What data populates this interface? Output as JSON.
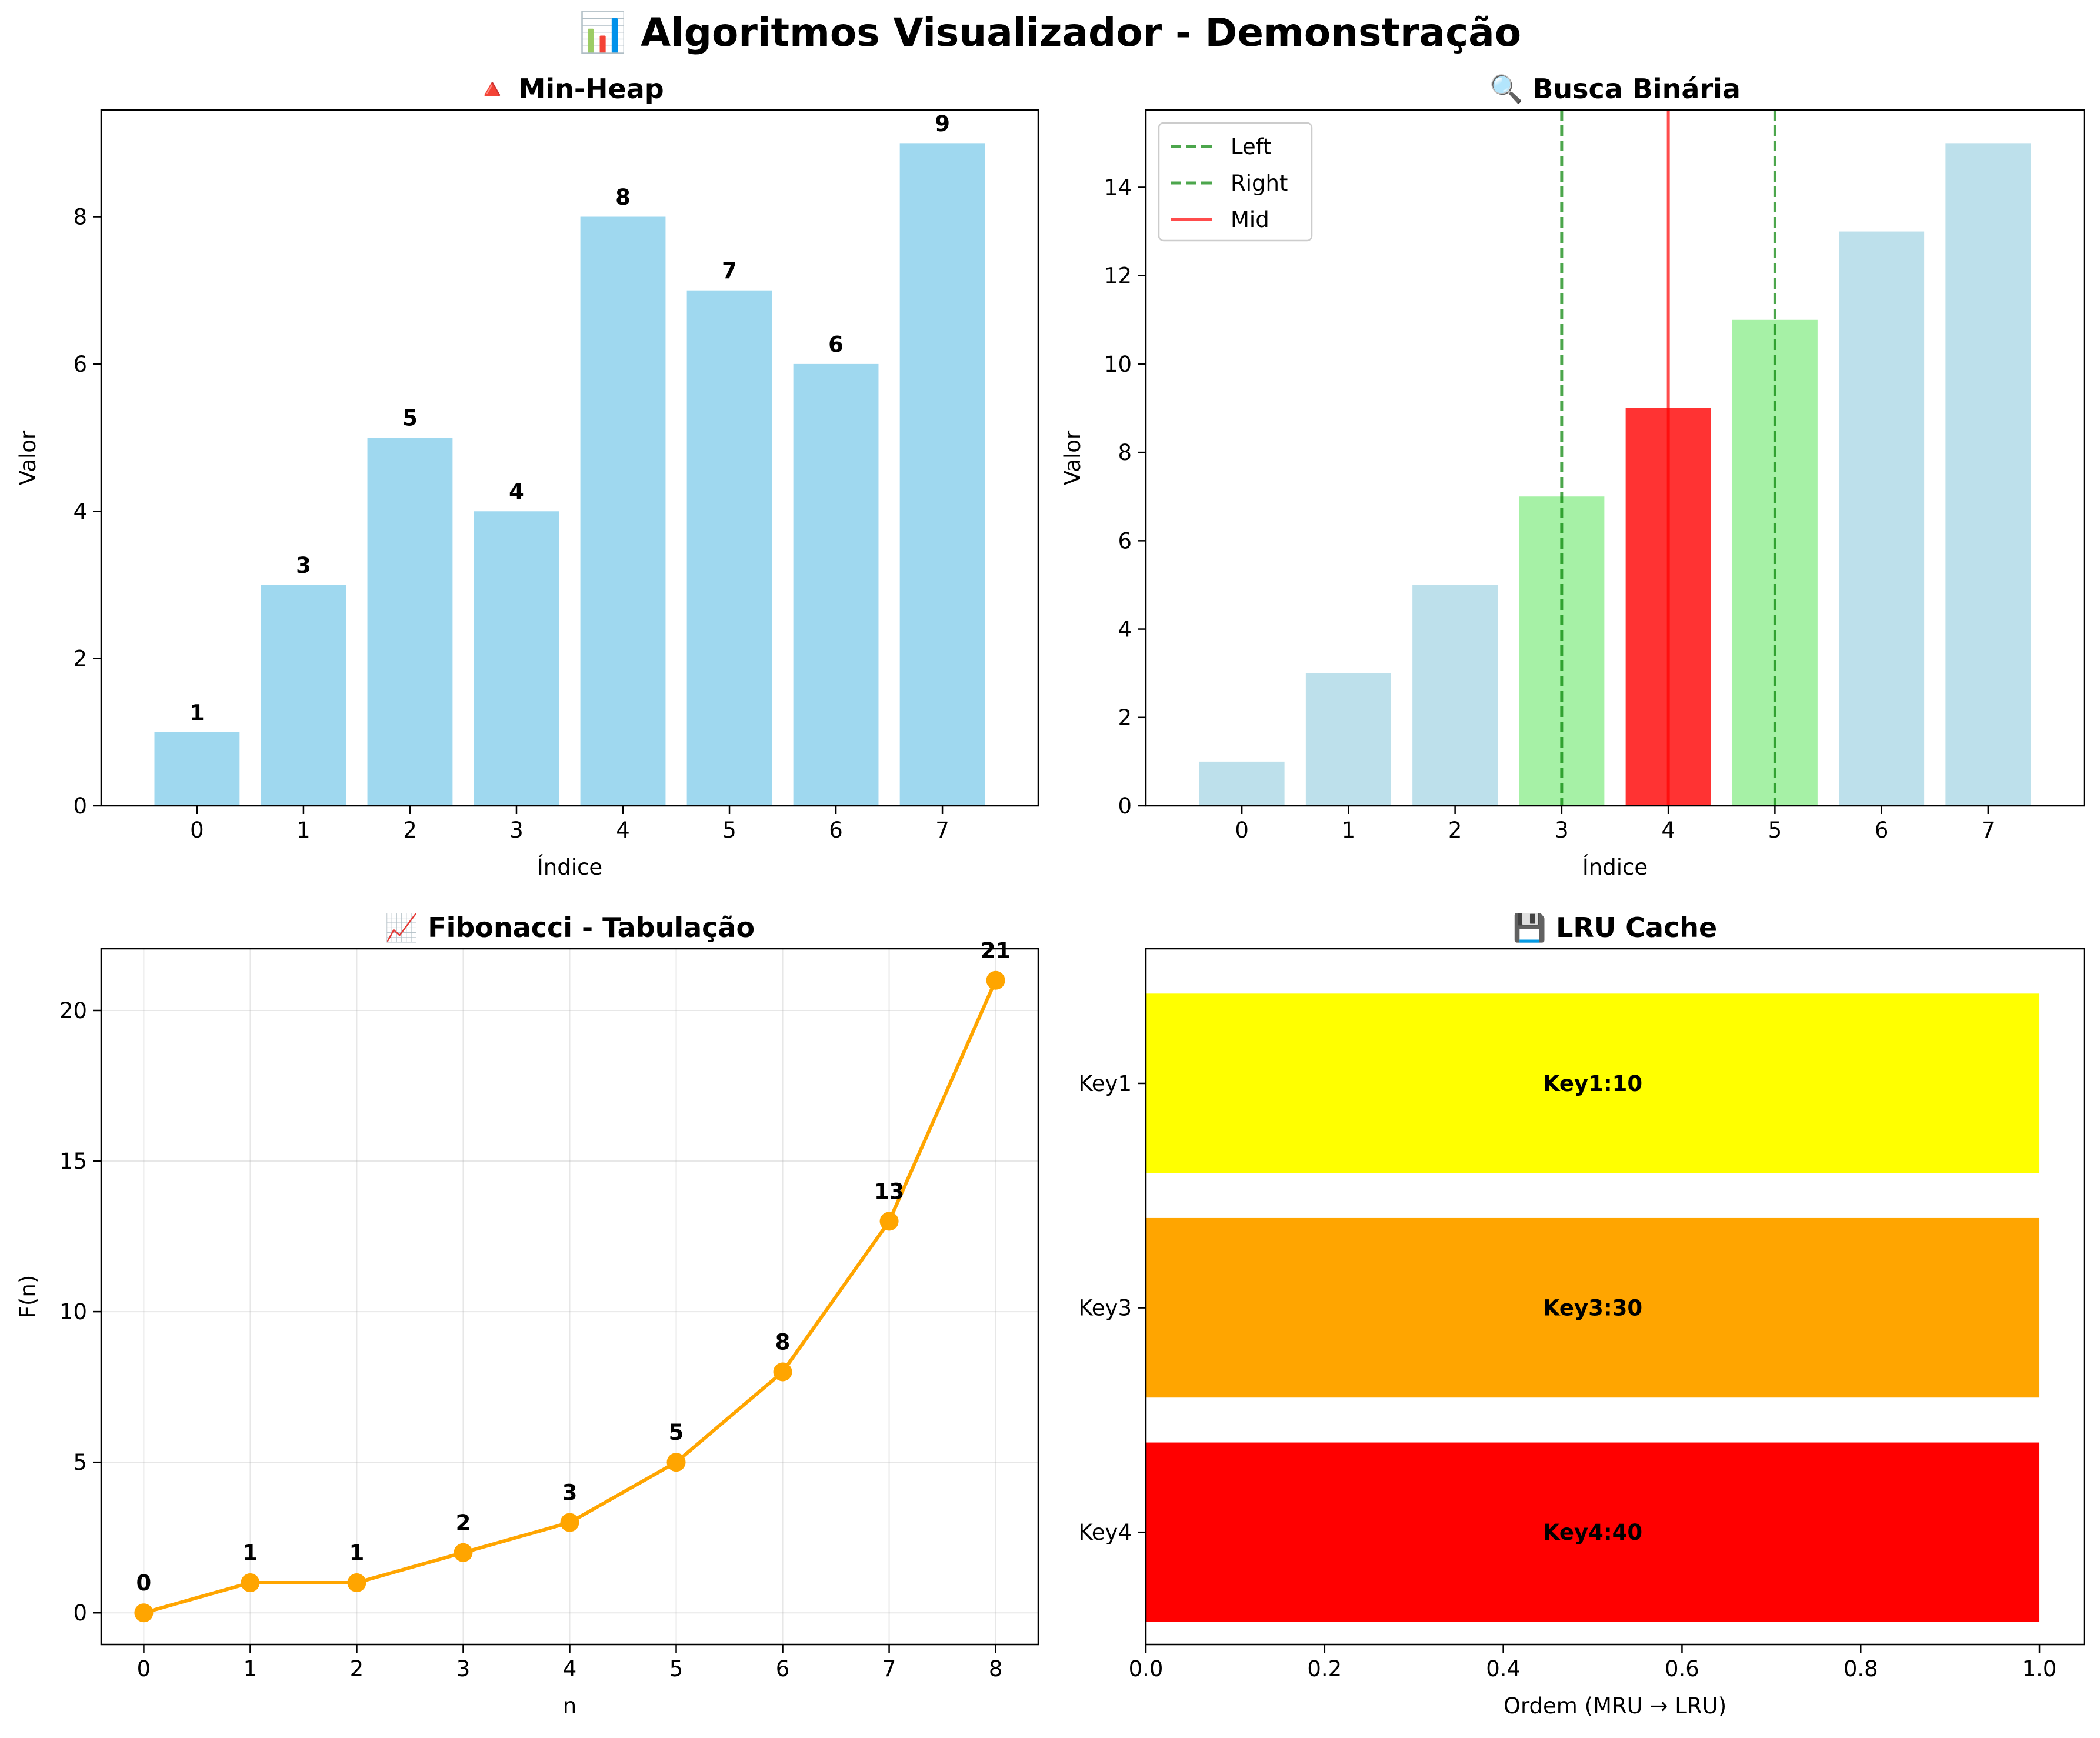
{
  "figure": {
    "title": "📊 Algoritmos Visualizador - Demonstração"
  },
  "chart_data": [
    {
      "id": "heap",
      "type": "bar",
      "title": "🔺 Min-Heap",
      "xlabel": "Índice",
      "ylabel": "Valor",
      "categories": [
        "0",
        "1",
        "2",
        "3",
        "4",
        "5",
        "6",
        "7"
      ],
      "values": [
        1,
        3,
        5,
        4,
        8,
        7,
        6,
        9
      ],
      "data_labels": [
        "1",
        "3",
        "5",
        "4",
        "8",
        "7",
        "6",
        "9"
      ],
      "xlim": [
        -0.9,
        7.9
      ],
      "ylim": [
        0,
        9.45
      ],
      "yticks": [
        0,
        2,
        4,
        6,
        8
      ],
      "bar_color": "#87CEEB",
      "bar_alpha": 0.8,
      "grid": false
    },
    {
      "id": "binary",
      "type": "bar",
      "title": "🔍 Busca Binária",
      "xlabel": "Índice",
      "ylabel": "Valor",
      "categories": [
        "0",
        "1",
        "2",
        "3",
        "4",
        "5",
        "6",
        "7"
      ],
      "values": [
        1,
        3,
        5,
        7,
        9,
        11,
        13,
        15
      ],
      "bar_colors": [
        "#ADD8E6",
        "#ADD8E6",
        "#ADD8E6",
        "#90EE90",
        "#FF0000",
        "#90EE90",
        "#ADD8E6",
        "#ADD8E6"
      ],
      "bar_alpha": 0.8,
      "xlim": [
        -0.9,
        7.9
      ],
      "ylim": [
        0,
        15.75
      ],
      "yticks": [
        0,
        2,
        4,
        6,
        8,
        10,
        12,
        14
      ],
      "lines": [
        {
          "name": "Left",
          "x": 3,
          "color": "#008000",
          "dashed": true
        },
        {
          "name": "Right",
          "x": 5,
          "color": "#008000",
          "dashed": true
        },
        {
          "name": "Mid",
          "x": 4,
          "color": "#FF0000",
          "dashed": false
        }
      ],
      "legend": "upper-left",
      "grid": false
    },
    {
      "id": "fib",
      "type": "line",
      "title": "📈 Fibonacci - Tabulação",
      "xlabel": "n",
      "ylabel": "F(n)",
      "x": [
        0,
        1,
        2,
        3,
        4,
        5,
        6,
        7,
        8
      ],
      "values": [
        0,
        1,
        1,
        2,
        3,
        5,
        8,
        13,
        21
      ],
      "data_labels": [
        "0",
        "1",
        "1",
        "2",
        "3",
        "5",
        "8",
        "13",
        "21"
      ],
      "xlim": [
        -0.4,
        8.4
      ],
      "ylim": [
        -1.05,
        22.05
      ],
      "xticks": [
        0,
        1,
        2,
        3,
        4,
        5,
        6,
        7,
        8
      ],
      "yticks": [
        0,
        5,
        10,
        15,
        20
      ],
      "color": "#FFA500",
      "marker": "circle",
      "grid": true
    },
    {
      "id": "lru",
      "type": "bar",
      "orientation": "horizontal",
      "title": "💾 LRU Cache",
      "xlabel": "Ordem (MRU → LRU)",
      "ylabel": "",
      "categories": [
        "Key1",
        "Key3",
        "Key4"
      ],
      "values": [
        1,
        1,
        1
      ],
      "data_labels": [
        "Key1:10",
        "Key3:30",
        "Key4:40"
      ],
      "bar_colors": [
        "#FFFF00",
        "#FFA500",
        "#FF0000"
      ],
      "xlim": [
        0,
        1.05
      ],
      "xticks": [
        "0.0",
        "0.2",
        "0.4",
        "0.6",
        "0.8",
        "1.0"
      ],
      "ylim": [
        -0.5,
        2.6
      ],
      "grid": false
    }
  ]
}
